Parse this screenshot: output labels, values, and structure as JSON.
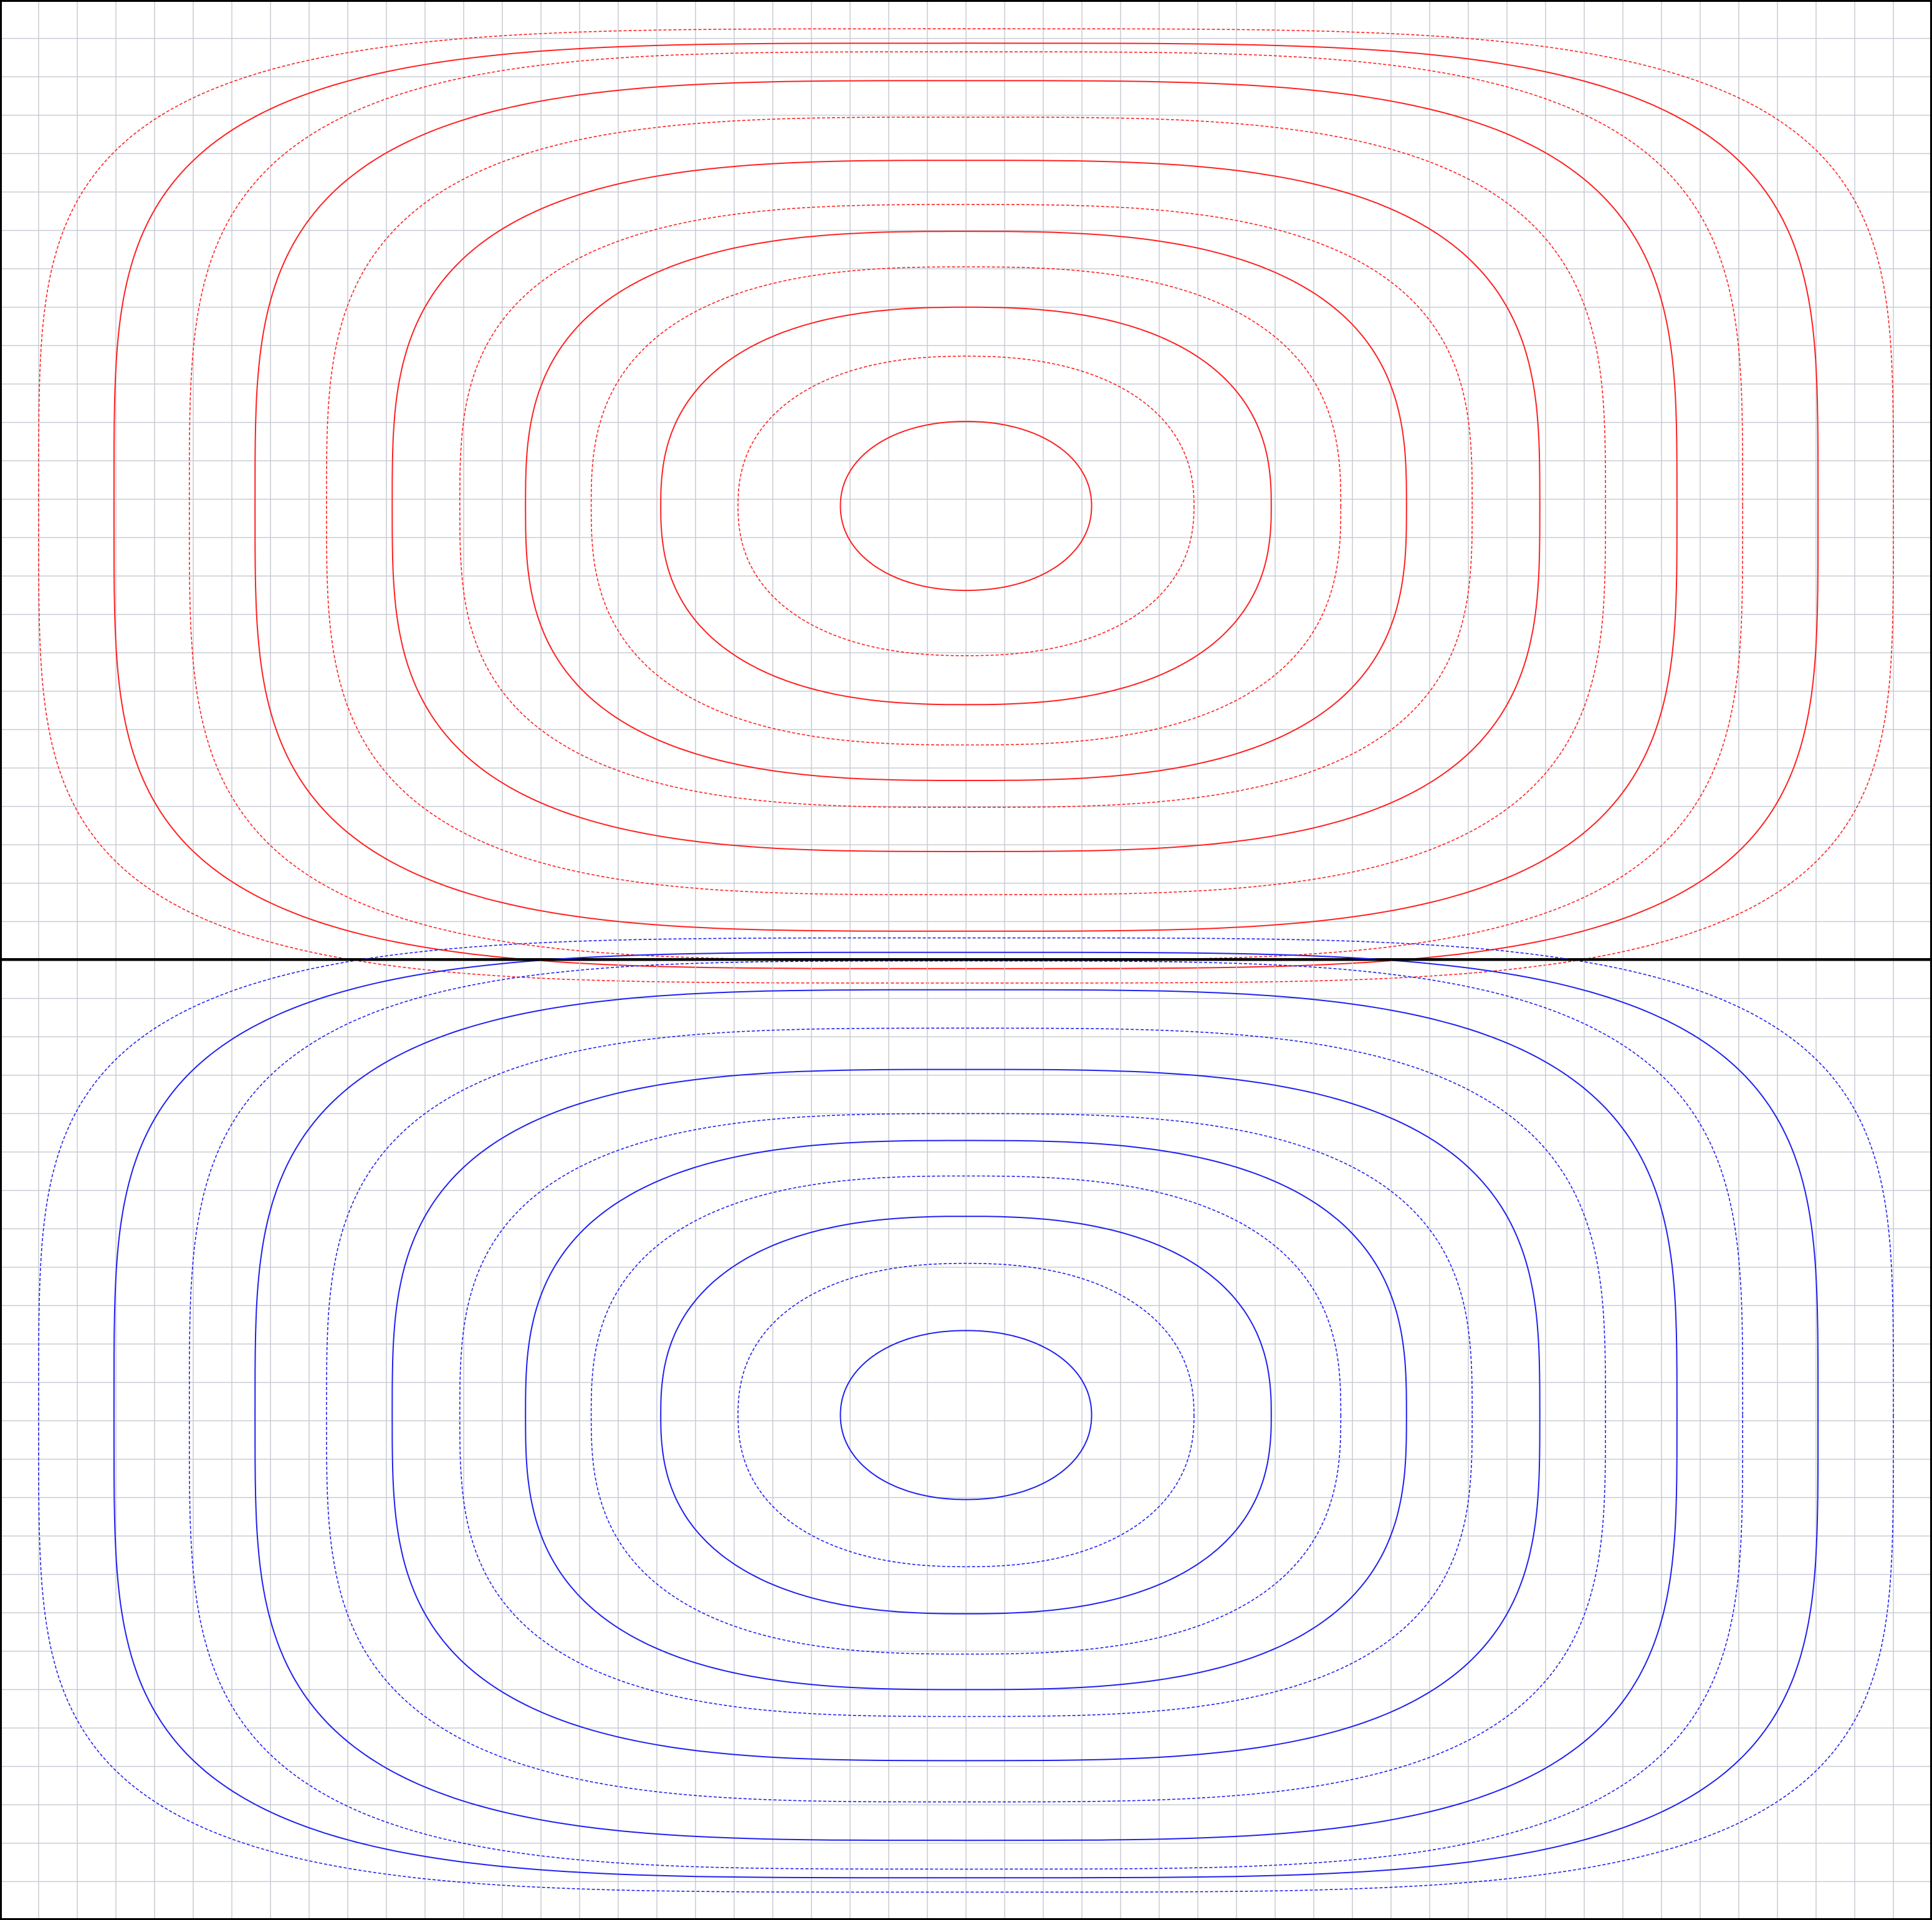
{
  "chart_data": [
    {
      "type": "contour",
      "panel": "top",
      "color": "#ff2020",
      "grid": true,
      "grid_columns": 50,
      "grid_rows": 25,
      "title": "",
      "xlabel": "",
      "ylabel": "",
      "center": [
        0.5,
        0.527
      ],
      "levels": [
        {
          "rx": 0.065,
          "ry": 0.088,
          "style": "solid"
        },
        {
          "rx": 0.118,
          "ry": 0.156,
          "style": "dashed"
        },
        {
          "rx": 0.158,
          "ry": 0.207,
          "style": "solid"
        },
        {
          "rx": 0.194,
          "ry": 0.249,
          "style": "dashed"
        },
        {
          "rx": 0.228,
          "ry": 0.286,
          "style": "solid"
        },
        {
          "rx": 0.262,
          "ry": 0.314,
          "style": "dashed"
        },
        {
          "rx": 0.297,
          "ry": 0.36,
          "style": "solid"
        },
        {
          "rx": 0.331,
          "ry": 0.405,
          "style": "dashed"
        },
        {
          "rx": 0.368,
          "ry": 0.443,
          "style": "solid"
        },
        {
          "rx": 0.402,
          "ry": 0.473,
          "style": "dashed"
        },
        {
          "rx": 0.441,
          "ry": 0.482,
          "style": "solid"
        },
        {
          "rx": 0.48,
          "ry": 0.497,
          "style": "dashed"
        }
      ]
    },
    {
      "type": "contour",
      "panel": "bottom",
      "color": "#2020f0",
      "grid": true,
      "grid_columns": 50,
      "grid_rows": 25,
      "title": "",
      "xlabel": "",
      "ylabel": "",
      "center": [
        0.5,
        0.474
      ],
      "levels": [
        {
          "rx": 0.065,
          "ry": 0.088,
          "style": "solid"
        },
        {
          "rx": 0.118,
          "ry": 0.158,
          "style": "dashed"
        },
        {
          "rx": 0.158,
          "ry": 0.207,
          "style": "solid"
        },
        {
          "rx": 0.194,
          "ry": 0.249,
          "style": "dashed"
        },
        {
          "rx": 0.228,
          "ry": 0.286,
          "style": "solid"
        },
        {
          "rx": 0.262,
          "ry": 0.314,
          "style": "dashed"
        },
        {
          "rx": 0.297,
          "ry": 0.36,
          "style": "solid"
        },
        {
          "rx": 0.331,
          "ry": 0.403,
          "style": "dashed"
        },
        {
          "rx": 0.368,
          "ry": 0.443,
          "style": "solid"
        },
        {
          "rx": 0.402,
          "ry": 0.473,
          "style": "dashed"
        },
        {
          "rx": 0.441,
          "ry": 0.482,
          "style": "solid"
        },
        {
          "rx": 0.48,
          "ry": 0.497,
          "style": "dashed"
        }
      ]
    }
  ]
}
